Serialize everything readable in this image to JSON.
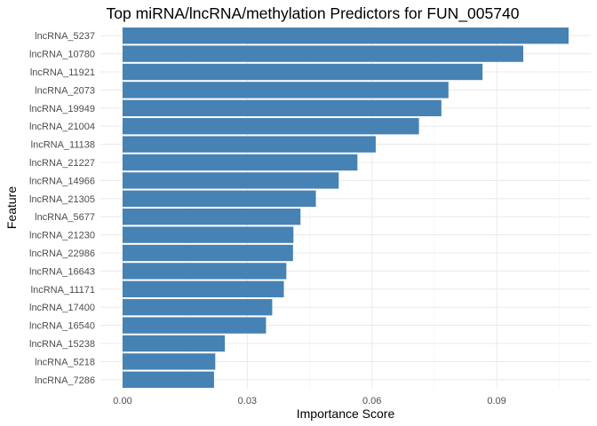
{
  "chart_data": {
    "type": "bar",
    "orientation": "horizontal",
    "title": "Top miRNA/lncRNA/methylation Predictors for FUN_005740",
    "xlabel": "Importance Score",
    "ylabel": "Feature",
    "bar_color": "#4682b4",
    "grid": true,
    "xlim": [
      0,
      0.1108
    ],
    "x_ticks": [
      0.0,
      0.03,
      0.06,
      0.09
    ],
    "x_tick_labels": [
      "0.00",
      "0.03",
      "0.06",
      "0.09"
    ],
    "categories": [
      "lncRNA_5237",
      "lncRNA_10780",
      "lncRNA_11921",
      "lncRNA_2073",
      "lncRNA_19949",
      "lncRNA_21004",
      "lncRNA_11138",
      "lncRNA_21227",
      "lncRNA_14966",
      "lncRNA_21305",
      "lncRNA_5677",
      "lncRNA_21230",
      "lncRNA_22986",
      "lncRNA_16643",
      "lncRNA_11171",
      "lncRNA_17400",
      "lncRNA_16540",
      "lncRNA_15238",
      "lncRNA_5218",
      "lncRNA_7286"
    ],
    "values": [
      0.1073,
      0.0964,
      0.0866,
      0.0784,
      0.0767,
      0.0713,
      0.0609,
      0.0565,
      0.052,
      0.0465,
      0.0428,
      0.0411,
      0.041,
      0.0394,
      0.0388,
      0.036,
      0.0345,
      0.0246,
      0.0223,
      0.022
    ]
  }
}
